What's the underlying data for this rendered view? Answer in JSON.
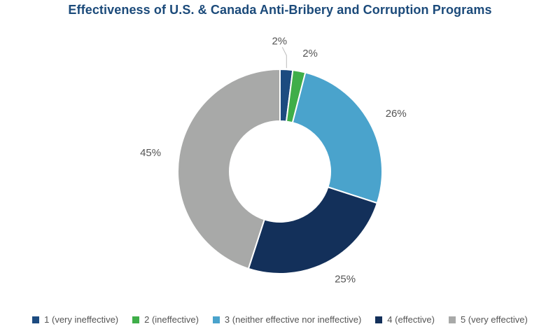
{
  "chart_data": {
    "type": "pie",
    "title": "Effectiveness of U.S. & Canada Anti-Bribery and Corruption Programs",
    "donut": true,
    "legend_position": "bottom",
    "categories": [
      "1 (very ineffective)",
      "2 (ineffective)",
      "3 (neither effective nor ineffective)",
      "4 (effective)",
      "5 (very effective)"
    ],
    "values": [
      2,
      2,
      26,
      25,
      45
    ],
    "labels": [
      "2%",
      "2%",
      "26%",
      "25%",
      "45%"
    ],
    "colors": [
      "#1c4b80",
      "#3fae49",
      "#4aa3cc",
      "#13305a",
      "#a8a9a8"
    ]
  }
}
